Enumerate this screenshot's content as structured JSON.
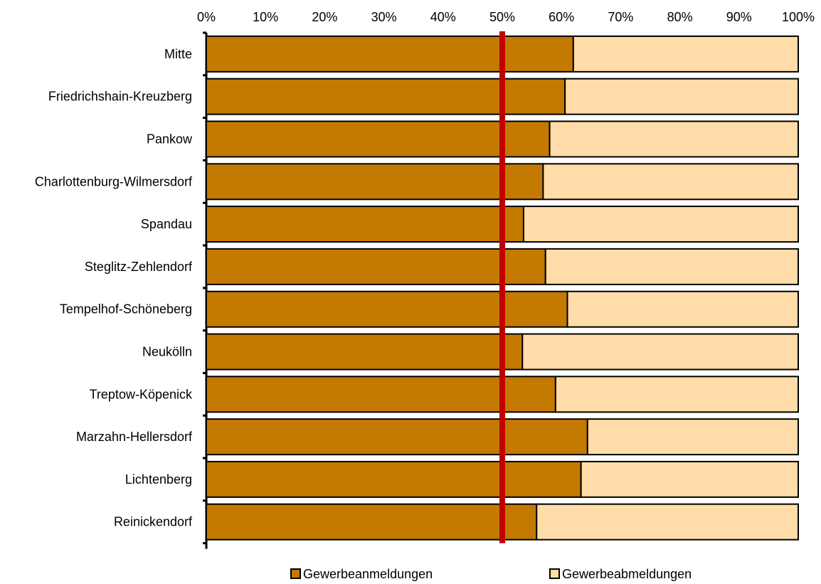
{
  "chart_data": {
    "type": "bar",
    "orientation": "horizontal",
    "stacked": "percent",
    "title": "",
    "xlabel": "",
    "ylabel": "",
    "xlim": [
      0,
      100
    ],
    "x_ticks": [
      "0%",
      "10%",
      "20%",
      "30%",
      "40%",
      "50%",
      "60%",
      "70%",
      "80%",
      "90%",
      "100%"
    ],
    "x_axis_position": "top",
    "grid": false,
    "reference_line": {
      "value": 50,
      "color": "#C00000"
    },
    "categories": [
      "Mitte",
      "Friedrichshain-Kreuzberg",
      "Pankow ",
      "Charlottenburg-Wilmersdorf",
      "Spandau ",
      "Steglitz-Zehlendorf ",
      "Tempelhof-Schöneberg",
      "Neukölln",
      "Treptow-Köpenick",
      "Marzahn-Hellersdorf",
      "Lichtenberg",
      "Reinickendorf"
    ],
    "series": [
      {
        "name": "Gewerbeanmeldungen",
        "color": "#C47A00",
        "values": [
          62,
          60.6,
          58,
          56.9,
          53.6,
          57.3,
          61,
          53.4,
          59,
          64.4,
          63.3,
          55.8
        ]
      },
      {
        "name": "Gewerbeabmeldungen",
        "color": "#FFDCA8",
        "values": [
          38,
          39.4,
          42,
          43.1,
          46.4,
          42.7,
          39,
          46.6,
          41,
          35.6,
          36.7,
          44.2
        ]
      }
    ],
    "legend": {
      "position": "bottom"
    }
  }
}
